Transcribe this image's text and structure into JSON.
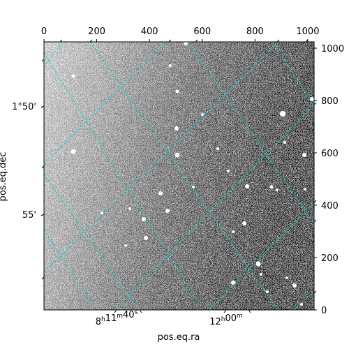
{
  "figure": {
    "xlabel": "pos.eq.ra",
    "ylabel": "pos.eq.dec",
    "top_ticks": [
      "0",
      "200",
      "400",
      "600",
      "800",
      "1000"
    ],
    "right_ticks": [
      "0",
      "200",
      "400",
      "600",
      "800",
      "1000"
    ],
    "left_ticks": [
      {
        "label": "1°50'"
      },
      {
        "label": "55'"
      }
    ],
    "bottom_ticks": [
      {
        "h": "8",
        "m": "11",
        "s": "40"
      },
      {
        "h": "12",
        "m": "00",
        "s": ""
      }
    ],
    "grid_color": "#00d5d5",
    "image": {
      "description_free": true,
      "pixel_range": [
        0,
        1024
      ]
    }
  }
}
